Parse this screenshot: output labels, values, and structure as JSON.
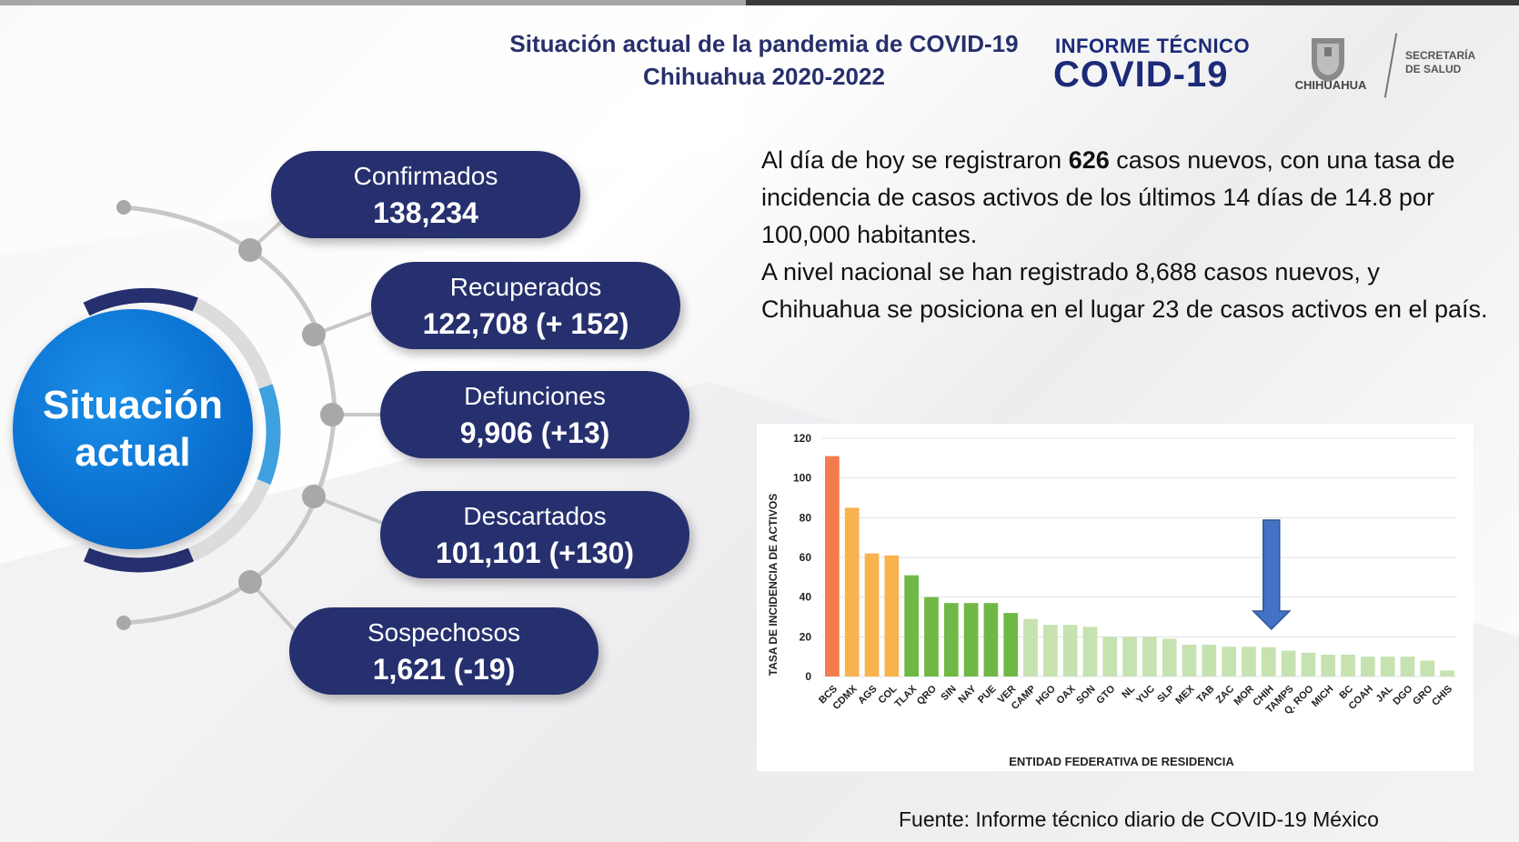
{
  "header": {
    "title_line1": "Situación actual de la pandemia de COVID-19",
    "title_line2": "Chihuahua 2020-2022",
    "informe": "INFORME TÉCNICO",
    "covid": "COVID-19",
    "chihuahua": "CHIHUAHUA",
    "secretaria_line1": "SECRETARÍA",
    "secretaria_line2": "DE SALUD"
  },
  "situacion": {
    "title_line1": "Situación",
    "title_line2": "actual",
    "cards": [
      {
        "label": "Confirmados",
        "value": "138,234"
      },
      {
        "label": "Recuperados",
        "value": "122,708 (+ 152)"
      },
      {
        "label": "Defunciones",
        "value": "9,906 (+13)"
      },
      {
        "label": "Descartados",
        "value": "101,101 (+130)"
      },
      {
        "label": "Sospechosos",
        "value": "1,621 (-19)"
      }
    ]
  },
  "summary": {
    "p1_a": "Al día de hoy se registraron ",
    "p1_bold": "626",
    "p1_b": " casos nuevos, con una tasa de incidencia de casos activos de los últimos 14 días de 14.8 por 100,000 habitantes.",
    "p2": "A nivel nacional se han registrado 8,688 casos nuevos, y Chihuahua se posiciona en el lugar 23 de casos activos en el país."
  },
  "colors": {
    "navy": "#26306e",
    "blue": "#0a6fd0",
    "orange_red": "#f47c4c",
    "orange": "#f8b24e",
    "green": "#70b845",
    "light_green": "#c6e2b0",
    "arrow": "#4472c4"
  },
  "chart_data": {
    "type": "bar",
    "xlabel": "ENTIDAD FEDERATIVA DE RESIDENCIA",
    "ylabel": "TASA DE INCIDENCIA DE ACTIVOS",
    "ylim": [
      0,
      120
    ],
    "yticks": [
      0,
      20,
      40,
      60,
      80,
      100,
      120
    ],
    "grid": true,
    "categories": [
      "BCS",
      "CDMX",
      "AGS",
      "COL",
      "TLAX",
      "QRO",
      "SIN",
      "NAY",
      "PUE",
      "VER",
      "CAMP",
      "HGO",
      "OAX",
      "SON",
      "GTO",
      "NL",
      "YUC",
      "SLP",
      "MEX",
      "TAB",
      "ZAC",
      "MOR",
      "CHIH",
      "TAMPS",
      "Q. ROO",
      "MICH",
      "BC",
      "COAH",
      "JAL",
      "DGO",
      "GRO",
      "CHIS"
    ],
    "values": [
      111,
      85,
      62,
      61,
      51,
      40,
      37,
      37,
      37,
      32,
      29,
      26,
      26,
      25,
      20,
      20,
      20,
      19,
      16,
      16,
      15,
      15,
      14.8,
      13,
      12,
      11,
      11,
      10,
      10,
      10,
      8,
      3
    ],
    "bar_colors": [
      "#f47c4c",
      "#f8b24e",
      "#f8b24e",
      "#f8b24e",
      "#70b845",
      "#70b845",
      "#70b845",
      "#70b845",
      "#70b845",
      "#70b845",
      "#c6e2b0",
      "#c6e2b0",
      "#c6e2b0",
      "#c6e2b0",
      "#c6e2b0",
      "#c6e2b0",
      "#c6e2b0",
      "#c6e2b0",
      "#c6e2b0",
      "#c6e2b0",
      "#c6e2b0",
      "#c6e2b0",
      "#c6e2b0",
      "#c6e2b0",
      "#c6e2b0",
      "#c6e2b0",
      "#c6e2b0",
      "#c6e2b0",
      "#c6e2b0",
      "#c6e2b0",
      "#c6e2b0",
      "#c6e2b0"
    ],
    "highlight": "CHIH",
    "annotation": "down-arrow-over-CHIH"
  },
  "source": "Fuente: Informe técnico diario de COVID-19 México"
}
